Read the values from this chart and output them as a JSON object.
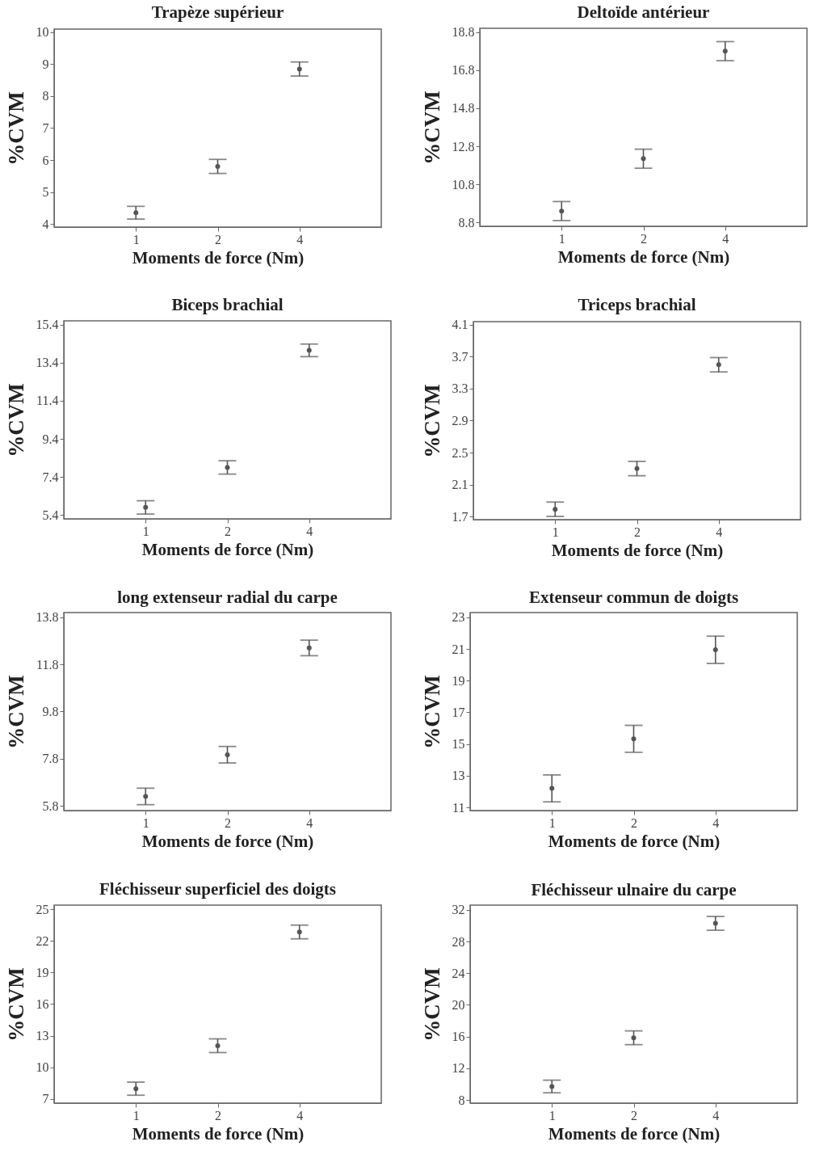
{
  "chart_data": [
    {
      "type": "scatter",
      "title": "Trapèze supérieur",
      "xlabel": "Moments de force (Nm)",
      "ylabel": "%CVM",
      "categories": [
        "1",
        "2",
        "4"
      ],
      "values": [
        4.35,
        5.8,
        8.85
      ],
      "errors": [
        0.2,
        0.22,
        0.22
      ],
      "ylim": [
        3.9,
        10.1
      ],
      "yticks": [
        4,
        5,
        6,
        7,
        8,
        9,
        10
      ],
      "color": "#555555",
      "marker": "circle"
    },
    {
      "type": "scatter",
      "title": "Deltoïde antérieur",
      "xlabel": "Moments de force (Nm)",
      "ylabel": "%CVM",
      "categories": [
        "1",
        "2",
        "4"
      ],
      "values": [
        9.4,
        12.15,
        17.8
      ],
      "errors": [
        0.5,
        0.5,
        0.5
      ],
      "ylim": [
        8.6,
        19.0
      ],
      "yticks": [
        8.8,
        10.8,
        12.8,
        14.8,
        16.8,
        18.8
      ],
      "color": "#555555",
      "marker": "circle"
    },
    {
      "type": "scatter",
      "title": "Biceps brachial",
      "xlabel": "Moments de force (Nm)",
      "ylabel": "%CVM",
      "categories": [
        "1",
        "2",
        "4"
      ],
      "values": [
        5.8,
        7.9,
        14.05
      ],
      "errors": [
        0.35,
        0.35,
        0.33
      ],
      "ylim": [
        5.2,
        15.6
      ],
      "yticks": [
        5.4,
        7.4,
        9.4,
        11.4,
        13.4,
        15.4
      ],
      "color": "#555555",
      "marker": "circle"
    },
    {
      "type": "scatter",
      "title": "Triceps brachial",
      "xlabel": "Moments de force (Nm)",
      "ylabel": "%CVM",
      "categories": [
        "1",
        "2",
        "4"
      ],
      "values": [
        1.79,
        2.3,
        3.6
      ],
      "errors": [
        0.09,
        0.09,
        0.09
      ],
      "ylim": [
        1.66,
        4.14
      ],
      "yticks": [
        1.7,
        2.1,
        2.5,
        2.9,
        3.3,
        3.7,
        4.1
      ],
      "color": "#555555",
      "marker": "circle"
    },
    {
      "type": "scatter",
      "title": "long extenseur radial du carpe",
      "xlabel": "Moments de force (Nm)",
      "ylabel": "%CVM",
      "categories": [
        "1",
        "2",
        "4"
      ],
      "values": [
        6.2,
        7.97,
        12.5
      ],
      "errors": [
        0.35,
        0.35,
        0.33
      ],
      "ylim": [
        5.6,
        14.0
      ],
      "yticks": [
        5.8,
        7.8,
        9.8,
        11.8,
        13.8
      ],
      "color": "#555555",
      "marker": "circle"
    },
    {
      "type": "scatter",
      "title": "Extenseur commun de doigts",
      "xlabel": "Moments de force (Nm)",
      "ylabel": "%CVM",
      "categories": [
        "1",
        "2",
        "4"
      ],
      "values": [
        12.2,
        15.33,
        20.95
      ],
      "errors": [
        0.85,
        0.85,
        0.86
      ],
      "ylim": [
        10.8,
        23.3
      ],
      "yticks": [
        11,
        13,
        15,
        17,
        19,
        21,
        23
      ],
      "color": "#555555",
      "marker": "circle"
    },
    {
      "type": "scatter",
      "title": "Fléchisseur superficiel des doigts",
      "xlabel": "Moments de force (Nm)",
      "ylabel": "%CVM",
      "categories": [
        "1",
        "2",
        "4"
      ],
      "values": [
        7.97,
        12.05,
        22.85
      ],
      "errors": [
        0.62,
        0.65,
        0.65
      ],
      "ylim": [
        6.6,
        25.4
      ],
      "yticks": [
        7,
        10,
        13,
        16,
        19,
        22,
        25
      ],
      "color": "#555555",
      "marker": "circle"
    },
    {
      "type": "scatter",
      "title": "Fléchisseur ulnaire du carpe",
      "xlabel": "Moments de force (Nm)",
      "ylabel": "%CVM",
      "categories": [
        "1",
        "2",
        "4"
      ],
      "values": [
        9.7,
        15.85,
        30.3
      ],
      "errors": [
        0.8,
        0.87,
        0.87
      ],
      "ylim": [
        7.6,
        32.6
      ],
      "yticks": [
        8,
        12,
        16,
        20,
        24,
        28,
        32
      ],
      "color": "#555555",
      "marker": "circle"
    }
  ]
}
